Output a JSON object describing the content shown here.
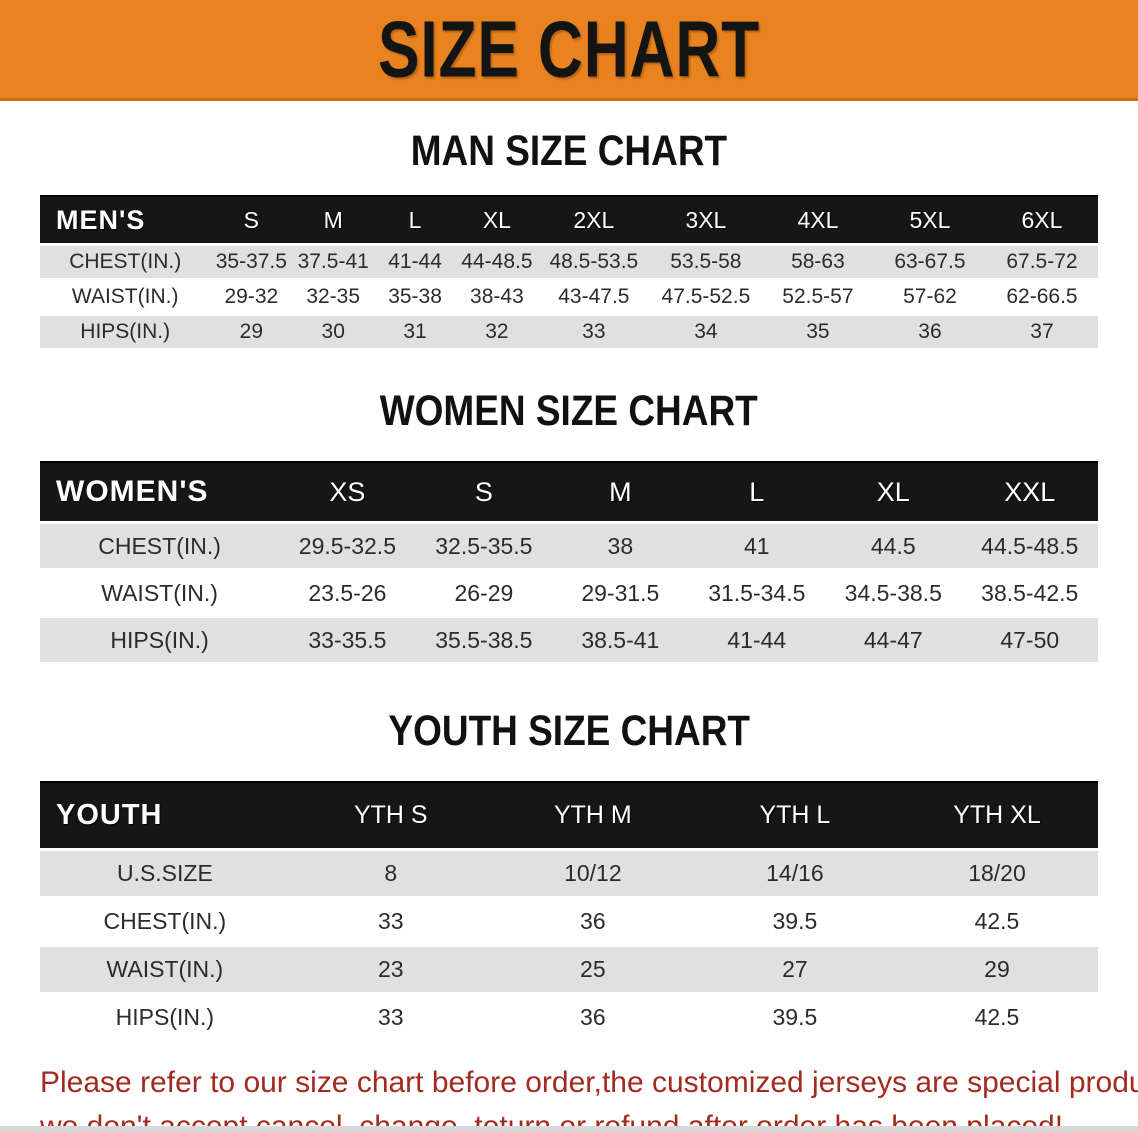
{
  "banner": {
    "title": "SIZE CHART",
    "bg_color": "#E8831F"
  },
  "colors": {
    "table_header_bg": "#161616",
    "row_shade": "#E0E0E0",
    "warning_text": "#A32A20"
  },
  "sections": [
    {
      "heading": "MAN SIZE CHART",
      "table": {
        "label": "MEN'S",
        "columns": [
          "S",
          "M",
          "L",
          "XL",
          "2XL",
          "3XL",
          "4XL",
          "5XL",
          "6XL"
        ],
        "rows": [
          {
            "label": "CHEST(IN.)",
            "values": [
              "35-37.5",
              "37.5-41",
              "41-44",
              "44-48.5",
              "48.5-53.5",
              "53.5-58",
              "58-63",
              "63-67.5",
              "67.5-72"
            ]
          },
          {
            "label": "WAIST(IN.)",
            "values": [
              "29-32",
              "32-35",
              "35-38",
              "38-43",
              "43-47.5",
              "47.5-52.5",
              "52.5-57",
              "57-62",
              "62-66.5"
            ]
          },
          {
            "label": "HIPS(IN.)",
            "values": [
              "29",
              "30",
              "31",
              "32",
              "33",
              "34",
              "35",
              "36",
              "37"
            ]
          }
        ]
      }
    },
    {
      "heading": "WOMEN SIZE CHART",
      "table": {
        "label": "WOMEN'S",
        "columns": [
          "XS",
          "S",
          "M",
          "L",
          "XL",
          "XXL"
        ],
        "rows": [
          {
            "label": "CHEST(IN.)",
            "values": [
              "29.5-32.5",
              "32.5-35.5",
              "38",
              "41",
              "44.5",
              "44.5-48.5"
            ]
          },
          {
            "label": "WAIST(IN.)",
            "values": [
              "23.5-26",
              "26-29",
              "29-31.5",
              "31.5-34.5",
              "34.5-38.5",
              "38.5-42.5"
            ]
          },
          {
            "label": "HIPS(IN.)",
            "values": [
              "33-35.5",
              "35.5-38.5",
              "38.5-41",
              "41-44",
              "44-47",
              "47-50"
            ]
          }
        ]
      }
    },
    {
      "heading": "YOUTH SIZE CHART",
      "table": {
        "label": "YOUTH",
        "columns": [
          "YTH S",
          "YTH M",
          "YTH L",
          "YTH XL"
        ],
        "rows": [
          {
            "label": "U.S.SIZE",
            "values": [
              "8",
              "10/12",
              "14/16",
              "18/20"
            ]
          },
          {
            "label": "CHEST(IN.)",
            "values": [
              "33",
              "36",
              "39.5",
              "42.5"
            ]
          },
          {
            "label": "WAIST(IN.)",
            "values": [
              "23",
              "25",
              "27",
              "29"
            ]
          },
          {
            "label": "HIPS(IN.)",
            "values": [
              "33",
              "36",
              "39.5",
              "42.5"
            ]
          }
        ]
      }
    }
  ],
  "footer": {
    "line1": "Please refer to our size chart before order,the customized jerseys are special products,",
    "line2": "we don't accept cancel, change, teturn or refund after order has been placed!"
  }
}
